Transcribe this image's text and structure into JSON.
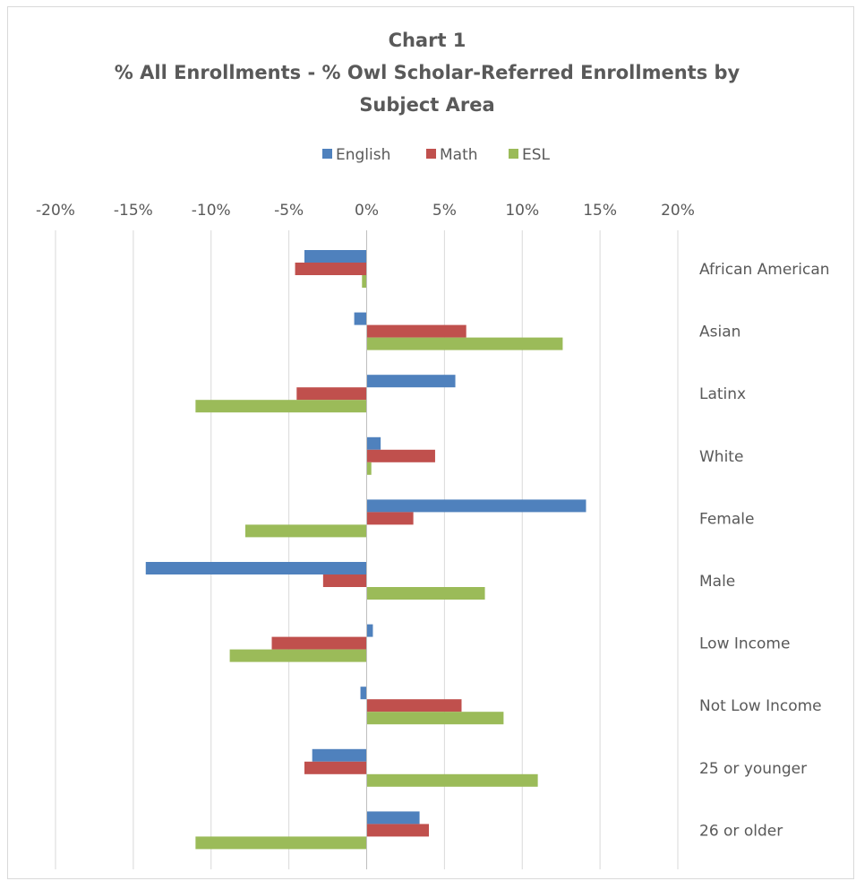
{
  "chart_data": {
    "type": "bar",
    "orientation": "horizontal",
    "title": [
      "Chart 1",
      "% All Enrollments - % Owl Scholar-Referred Enrollments by",
      "Subject Area"
    ],
    "xlim": [
      -0.2,
      0.2
    ],
    "xticks": [
      -0.2,
      -0.15,
      -0.1,
      -0.05,
      0,
      0.05,
      0.1,
      0.15,
      0.2
    ],
    "xtick_labels": [
      "-20%",
      "-15%",
      "-10%",
      "-5%",
      "0%",
      "5%",
      "10%",
      "15%",
      "20%"
    ],
    "x_axis_position": "top",
    "grid": true,
    "legend_position": "top",
    "categories": [
      "African American",
      "Asian",
      "Latinx",
      "White",
      "Female",
      "Male",
      "Low Income",
      "Not Low Income",
      "25 or younger",
      "26 or older"
    ],
    "series": [
      {
        "name": "English",
        "color": "#4f81bd",
        "values": [
          -0.04,
          -0.008,
          0.057,
          0.009,
          0.141,
          -0.142,
          0.004,
          -0.004,
          -0.035,
          0.034
        ]
      },
      {
        "name": "Math",
        "color": "#c0504d",
        "values": [
          -0.046,
          0.064,
          -0.045,
          0.044,
          0.03,
          -0.028,
          -0.061,
          0.061,
          -0.04,
          0.04
        ]
      },
      {
        "name": "ESL",
        "color": "#9bbb59",
        "values": [
          -0.003,
          0.126,
          -0.11,
          0.003,
          -0.078,
          0.076,
          -0.088,
          0.088,
          0.11,
          -0.11
        ]
      }
    ]
  }
}
